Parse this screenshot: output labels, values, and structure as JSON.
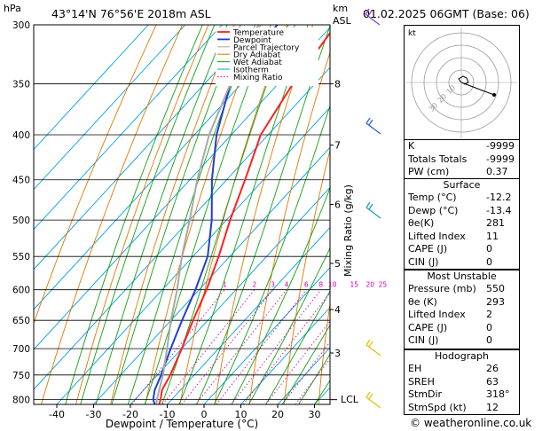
{
  "header": {
    "hpa_label": "hPa",
    "location": "43°14'N  76°56'E  2018m  ASL",
    "km_label": "km",
    "asl_label": "ASL",
    "datetime": "01.02.2025  06GMT  (Base: 06)"
  },
  "colors": {
    "temperature": "#ff2020",
    "dewpoint": "#1f3fd0",
    "parcel": "#a8a8a8",
    "dry_adiabat": "#e07800",
    "wet_adiabat": "#10a010",
    "isotherm": "#00a0e0",
    "mixing_ratio": "#cc00aa"
  },
  "chart_data": {
    "type": "line",
    "title": "",
    "xlabel": "Dewpoint / Temperature (°C)",
    "ylabel": "",
    "right_axis_label": "Mixing Ratio (g/kg)",
    "x_ticks": [
      "-40",
      "-30",
      "-20",
      "-10",
      "0",
      "10",
      "20",
      "30"
    ],
    "pressure_ticks": [
      "300",
      "350",
      "400",
      "450",
      "500",
      "550",
      "600",
      "650",
      "700",
      "750",
      "800"
    ],
    "km_ticks": [
      "8",
      "7",
      "6",
      "5",
      "4",
      "3"
    ],
    "lcl_label": "LCL",
    "mixing_ratio_labels": [
      "1",
      "2",
      "3",
      "4",
      "6",
      "8",
      "10",
      "15",
      "20",
      "25"
    ],
    "legend": [
      "Temperature",
      "Dewpoint",
      "Parcel Trajectory",
      "Dry Adiabat",
      "Wet Adiabat",
      "Isotherm",
      "Mixing Ratio"
    ],
    "series": [
      {
        "name": "Temperature",
        "pressure": [
          810,
          800,
          780,
          750,
          700,
          650,
          600,
          550,
          500,
          450,
          400,
          350,
          300
        ],
        "temp_c": [
          -12.2,
          -13,
          -15,
          -16.5,
          -20,
          -24,
          -28,
          -33,
          -39,
          -45,
          -52,
          -56,
          -59
        ]
      },
      {
        "name": "Dewpoint",
        "pressure": [
          810,
          800,
          780,
          750,
          700,
          650,
          600,
          550,
          500,
          450,
          400,
          350,
          300
        ],
        "temp_c": [
          -13.4,
          -15,
          -17,
          -19,
          -23,
          -27,
          -31,
          -36,
          -44,
          -54,
          -64,
          -73,
          -75
        ]
      },
      {
        "name": "Parcel Trajectory",
        "pressure": [
          810,
          800,
          750,
          700,
          650,
          600,
          550,
          500,
          450,
          400,
          350,
          300
        ],
        "temp_c": [
          -13,
          -14,
          -18.5,
          -24,
          -30,
          -36,
          -43,
          -50,
          -58,
          -66,
          -73,
          -80
        ]
      }
    ]
  },
  "hodograph": {
    "unit_label": "kt",
    "ring_labels": [
      "10",
      "20",
      "30"
    ]
  },
  "indices": [
    {
      "k": "K",
      "v": "-9999"
    },
    {
      "k": "Totals Totals",
      "v": "-9999"
    },
    {
      "k": "PW (cm)",
      "v": "0.37"
    }
  ],
  "surface": {
    "title": "Surface",
    "rows": [
      {
        "k": "Temp (°C)",
        "v": "-12.2"
      },
      {
        "k": "Dewp (°C)",
        "v": "-13.4"
      },
      {
        "k": "θe(K)",
        "v": "281"
      },
      {
        "k": "Lifted Index",
        "v": "11"
      },
      {
        "k": "CAPE (J)",
        "v": "0"
      },
      {
        "k": "CIN (J)",
        "v": "0"
      }
    ]
  },
  "most_unstable": {
    "title": "Most Unstable",
    "rows": [
      {
        "k": "Pressure (mb)",
        "v": "550"
      },
      {
        "k": "θe (K)",
        "v": "293"
      },
      {
        "k": "Lifted Index",
        "v": "2"
      },
      {
        "k": "CAPE (J)",
        "v": "0"
      },
      {
        "k": "CIN (J)",
        "v": "0"
      }
    ]
  },
  "hodograph_box": {
    "title": "Hodograph",
    "rows": [
      {
        "k": "EH",
        "v": "26"
      },
      {
        "k": "SREH",
        "v": "63"
      },
      {
        "k": "StmDir",
        "v": "318°"
      },
      {
        "k": "StmSpd (kt)",
        "v": "12"
      }
    ]
  },
  "footer": "© weatheronline.co.uk"
}
